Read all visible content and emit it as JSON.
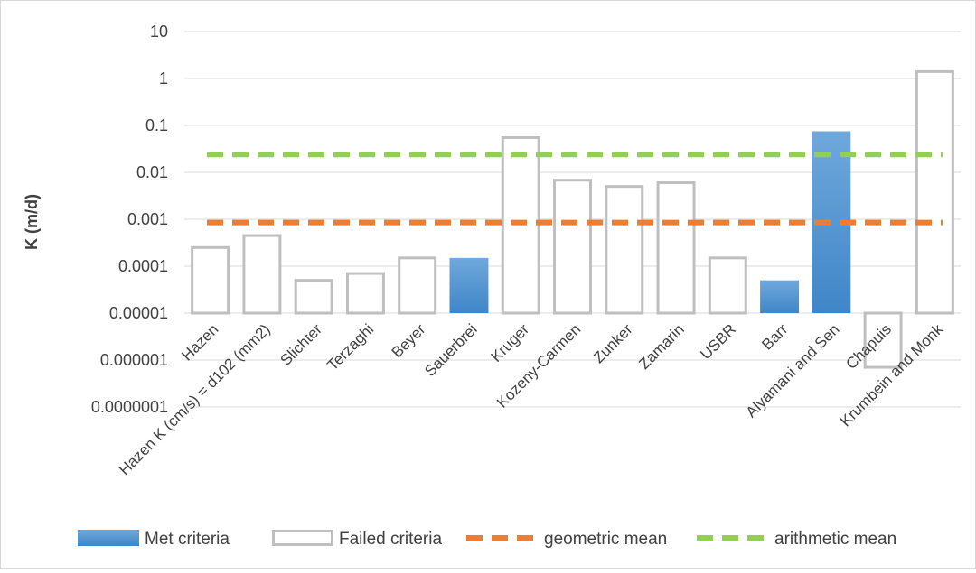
{
  "chart_data": {
    "type": "bar",
    "title": "",
    "xlabel": "",
    "ylabel": "K (m/d)",
    "y_scale": "log",
    "ylim": [
      1e-07,
      10
    ],
    "yticks": [
      "0.0000001",
      "0.000001",
      "0.00001",
      "0.0001",
      "0.001",
      "0.01",
      "0.1",
      "1",
      "10"
    ],
    "ytick_values": [
      1e-07,
      1e-06,
      1e-05,
      0.0001,
      0.001,
      0.01,
      0.1,
      1,
      10
    ],
    "bar_base": 1e-05,
    "grid": true,
    "legend_position": "bottom",
    "categories": [
      "Hazen",
      "Hazen K (cm/s) = d102 (mm2)",
      "Slichter",
      "Terzaghi",
      "Beyer",
      "Sauerbrei",
      "Kruger",
      "Kozeny-Carmen",
      "Zunker",
      "Zamarin",
      "USBR",
      "Barr",
      "Alyamani and Sen",
      "Chapuis",
      "Krumbein and Monk"
    ],
    "values": [
      0.00025,
      0.00045,
      5e-05,
      7e-05,
      0.00015,
      0.00015,
      0.055,
      0.0068,
      0.005,
      0.006,
      0.00015,
      5e-05,
      0.075,
      7e-07,
      1.4
    ],
    "met_criteria": [
      false,
      false,
      false,
      false,
      false,
      true,
      false,
      false,
      false,
      false,
      false,
      true,
      true,
      false,
      false
    ],
    "series": [
      {
        "name": "Met criteria",
        "style": "filled",
        "color": "#5b9bd5"
      },
      {
        "name": "Failed criteria",
        "style": "outline",
        "color": "#bfbfbf"
      },
      {
        "name": "geometric mean",
        "style": "dashed-line",
        "color": "#ed7d31",
        "value": 0.00085
      },
      {
        "name": "arithmetic mean",
        "style": "dashed-line",
        "color": "#92d050",
        "value": 0.024
      }
    ]
  }
}
